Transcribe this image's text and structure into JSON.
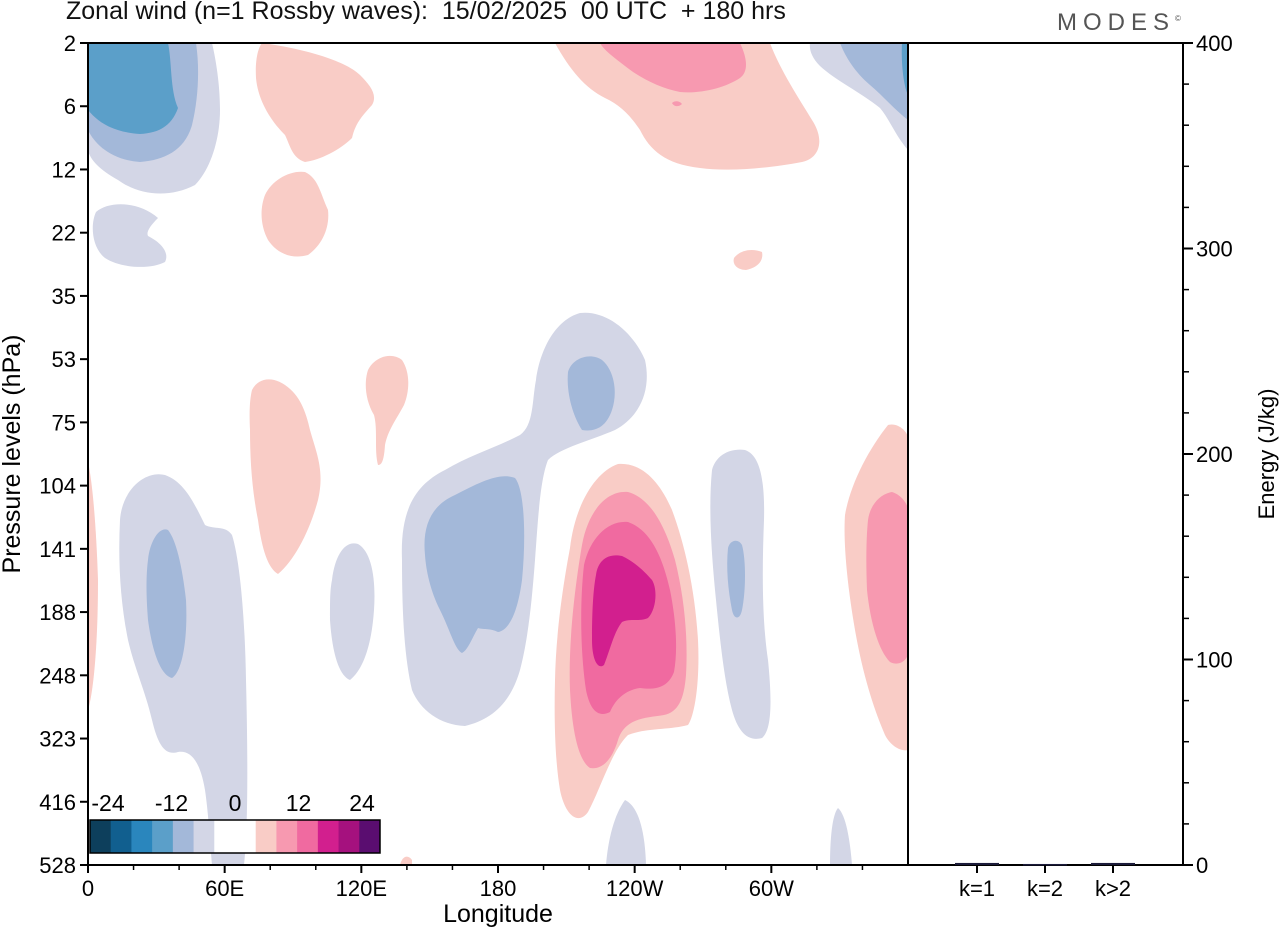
{
  "header": {
    "title": "Zonal wind (n=1 Rossby waves):  15/02/2025  00 UTC  + 180 hrs",
    "brand": "MODES",
    "brand_mark": "©"
  },
  "colors": {
    "neg_scale": [
      "#0d3f5c",
      "#115f8f",
      "#2a86bd",
      "#5b9fc9",
      "#a3b8d9",
      "#d3d6e6"
    ],
    "pos_scale": [
      "#f9ccc6",
      "#f799b0",
      "#f06aa0",
      "#d21f8e",
      "#a5117e",
      "#5a0d70"
    ],
    "zero": "#ffffff",
    "frame": "#000000"
  },
  "chart_data": [
    {
      "type": "heatmap",
      "title": "Zonal wind (n=1 Rossby waves):  15/02/2025  00 UTC  + 180 hrs",
      "xlabel": "Longitude",
      "ylabel": "Pressure levels (hPa)",
      "x_ticks": [
        "0",
        "60E",
        "120E",
        "180",
        "120W",
        "60W"
      ],
      "y_ticks": [
        "2",
        "6",
        "12",
        "22",
        "35",
        "53",
        "75",
        "104",
        "141",
        "188",
        "248",
        "323",
        "416",
        "528"
      ],
      "colorbar": {
        "tick_labels": [
          "-24",
          "-12",
          "0",
          "12",
          "24"
        ],
        "levels": [
          -24,
          -12,
          0,
          12,
          24
        ]
      },
      "features": [
        {
          "sign": "negative",
          "level": 3,
          "region": "0–60E, 2–12 hPa"
        },
        {
          "sign": "negative",
          "level": 1,
          "region": "10–30E, 104–528 hPa"
        },
        {
          "sign": "negative",
          "level": 1,
          "region": "140E–170W, 53–323 hPa"
        },
        {
          "sign": "positive",
          "level": 4,
          "region": "140W–100W, 104–416 hPa"
        },
        {
          "sign": "positive",
          "level": 2,
          "region": "170W–100W, 2–12 hPa"
        },
        {
          "sign": "positive",
          "level": 2,
          "region": "30W–0, 75–323 hPa"
        }
      ]
    },
    {
      "type": "bar",
      "ylabel": "Energy (J/kg)",
      "ylim": [
        0,
        400
      ],
      "y_ticks": [
        "0",
        "100",
        "200",
        "300",
        "400"
      ],
      "categories": [
        "k=1",
        "k=2",
        "k>2"
      ],
      "values": [
        1,
        0.5,
        1
      ]
    }
  ]
}
